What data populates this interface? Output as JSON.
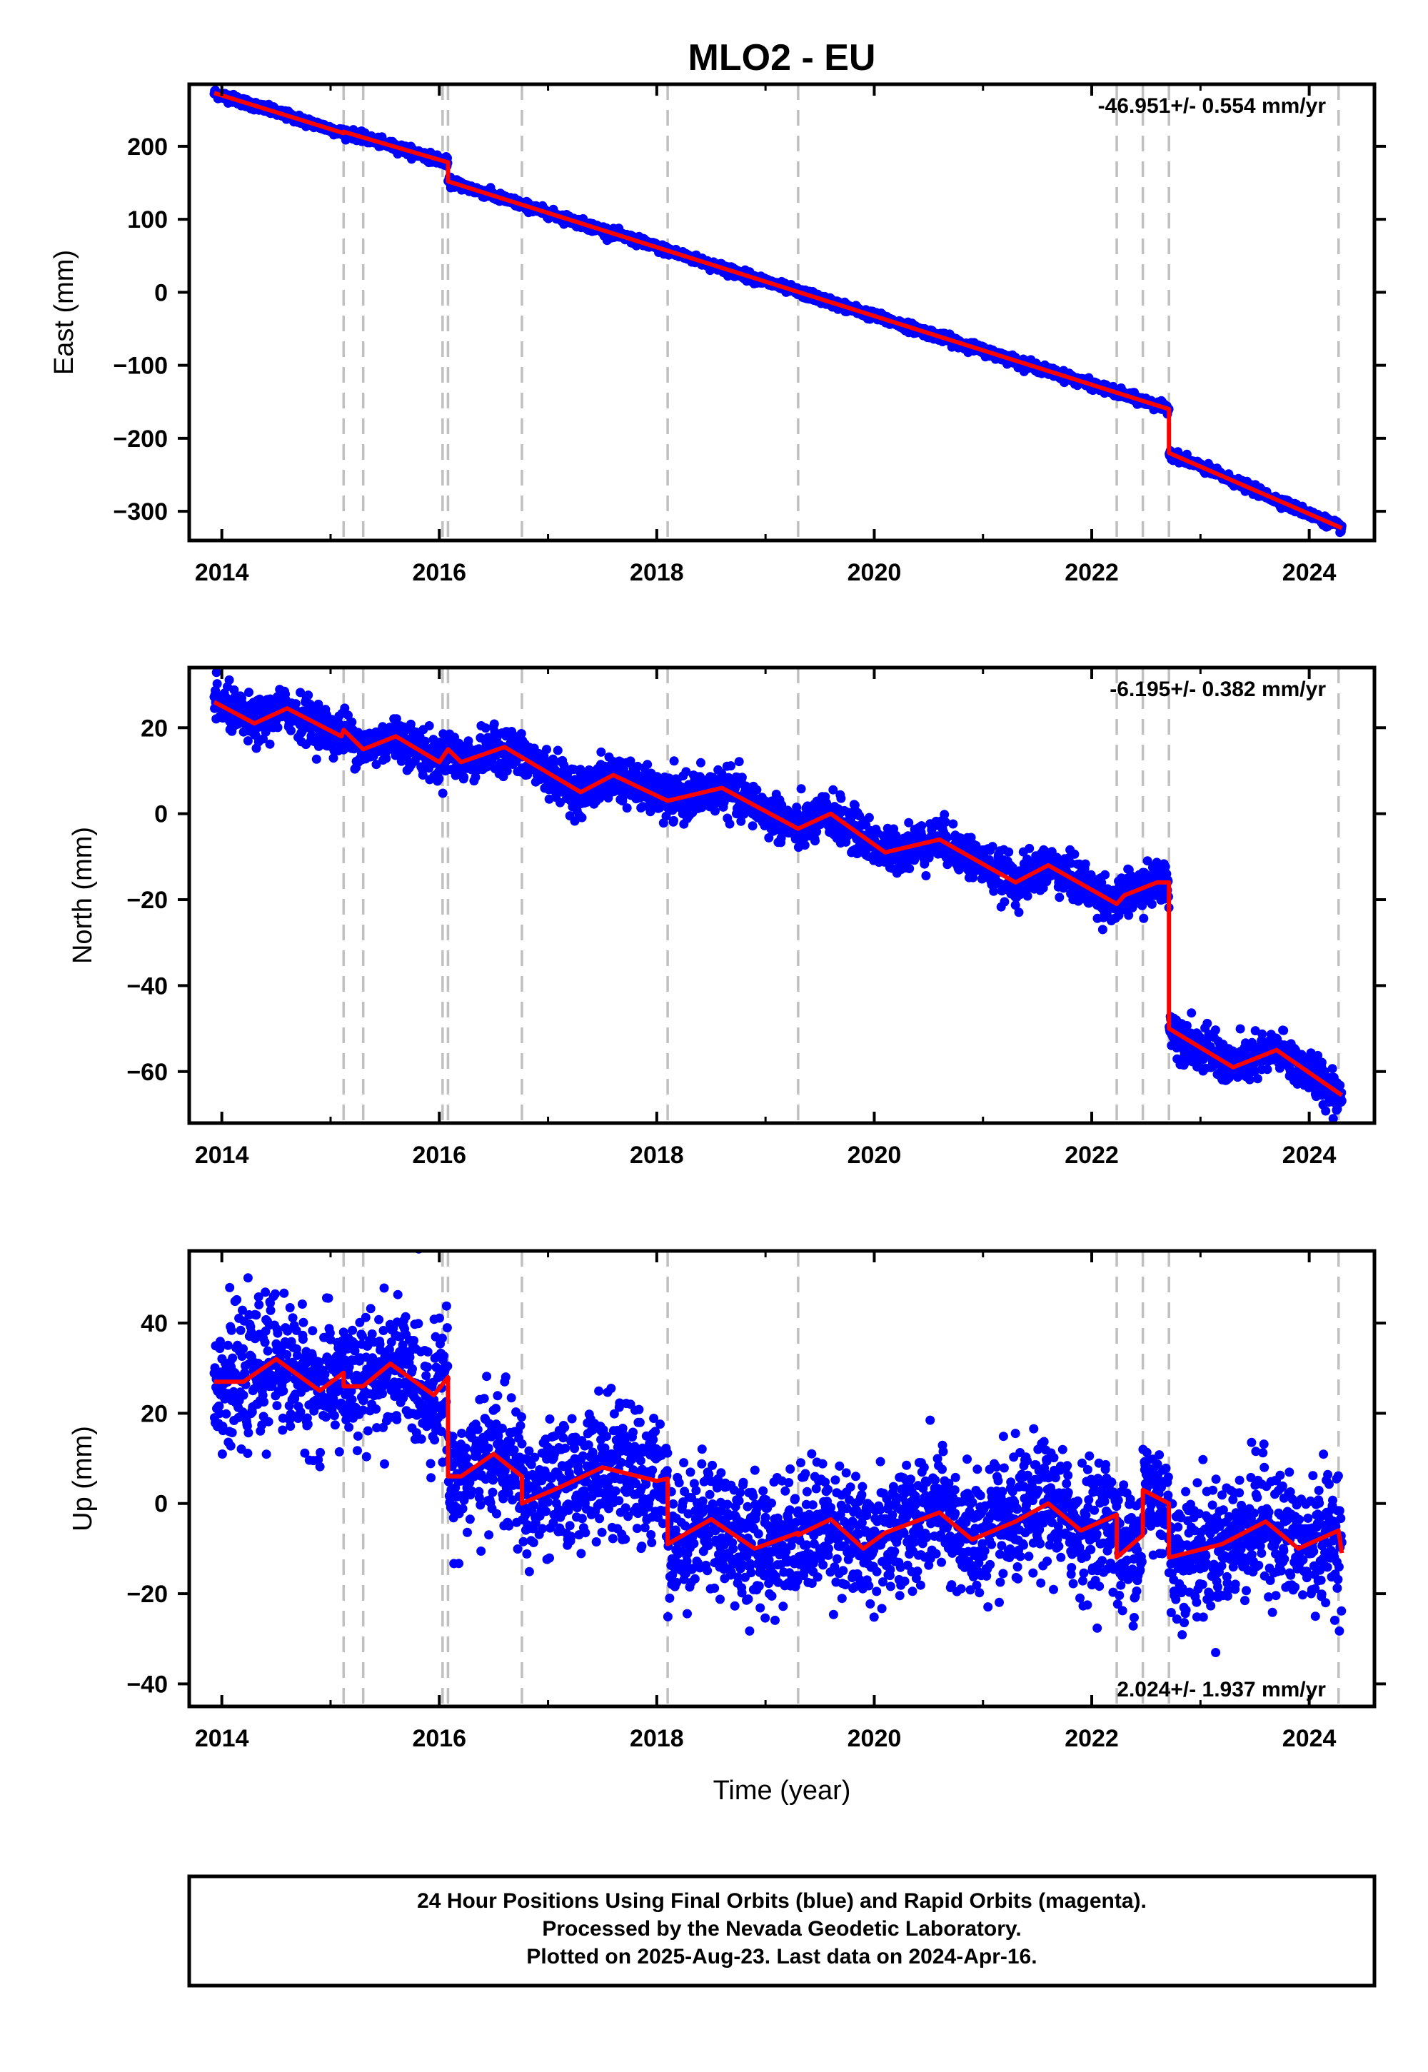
{
  "title": "MLO2 - EU",
  "xlabel": "Time (year)",
  "colors": {
    "points": "#0000ff",
    "model": "#ff0000",
    "breaks": "#c0c0c0",
    "frame": "#000000"
  },
  "footer": {
    "line1": "24 Hour Positions Using Final Orbits (blue) and Rapid Orbits (magenta).",
    "line2": "Processed by the Nevada Geodetic Laboratory.",
    "line3": "Plotted on 2025-Aug-23. Last data on 2024-Apr-16."
  },
  "chart_data": [
    {
      "type": "scatter",
      "name": "east",
      "ylabel": "East (mm)",
      "rate_label": "-46.951+/- 0.554 mm/yr",
      "rate_position": "top-right",
      "xlim": [
        2013.7,
        2024.6
      ],
      "ylim": [
        -340,
        285
      ],
      "xticks": [
        2014,
        2016,
        2018,
        2020,
        2022,
        2024
      ],
      "yticks": [
        -300,
        -200,
        -100,
        0,
        100,
        200
      ],
      "breaks": [
        2015.12,
        2015.3,
        2016.03,
        2016.08,
        2016.76,
        2018.1,
        2019.3,
        2022.23,
        2022.47,
        2022.71,
        2024.27
      ],
      "model_line": [
        [
          2013.93,
          273
        ],
        [
          2015.12,
          218
        ],
        [
          2015.12,
          220
        ],
        [
          2016.08,
          178
        ],
        [
          2016.08,
          152
        ],
        [
          2018.1,
          57
        ],
        [
          2022.71,
          -160
        ],
        [
          2022.71,
          -220
        ],
        [
          2024.3,
          -323
        ]
      ],
      "points": {
        "x_range": [
          2013.93,
          2024.3
        ],
        "scatter_mm": 3,
        "count": 3000
      }
    },
    {
      "type": "scatter",
      "name": "north",
      "ylabel": "North (mm)",
      "rate_label": "-6.195+/- 0.382 mm/yr",
      "rate_position": "top-right",
      "xlim": [
        2013.7,
        2024.6
      ],
      "ylim": [
        -72,
        34
      ],
      "xticks": [
        2014,
        2016,
        2018,
        2020,
        2022,
        2024
      ],
      "yticks": [
        -60,
        -40,
        -20,
        0,
        20
      ],
      "breaks": [
        2015.12,
        2015.3,
        2016.03,
        2016.08,
        2016.76,
        2018.1,
        2019.3,
        2022.23,
        2022.47,
        2022.71,
        2024.27
      ],
      "model_line": [
        [
          2013.93,
          26
        ],
        [
          2014.3,
          21
        ],
        [
          2014.6,
          24.5
        ],
        [
          2015.1,
          18
        ],
        [
          2015.12,
          19.5
        ],
        [
          2015.3,
          15
        ],
        [
          2015.6,
          18
        ],
        [
          2016.0,
          12
        ],
        [
          2016.08,
          15
        ],
        [
          2016.2,
          12
        ],
        [
          2016.6,
          15.5
        ],
        [
          2017.3,
          5
        ],
        [
          2017.6,
          9
        ],
        [
          2018.1,
          3
        ],
        [
          2018.6,
          6
        ],
        [
          2019.3,
          -3.5
        ],
        [
          2019.6,
          0
        ],
        [
          2020.1,
          -9
        ],
        [
          2020.6,
          -6
        ],
        [
          2021.3,
          -16
        ],
        [
          2021.6,
          -12
        ],
        [
          2022.23,
          -21
        ],
        [
          2022.3,
          -19
        ],
        [
          2022.6,
          -16
        ],
        [
          2022.71,
          -16
        ],
        [
          2022.71,
          -50
        ],
        [
          2023.3,
          -59
        ],
        [
          2023.7,
          -55
        ],
        [
          2024.3,
          -65.5
        ]
      ],
      "points": {
        "x_range": [
          2013.93,
          2024.3
        ],
        "scatter_mm": 2.5,
        "count": 3000
      }
    },
    {
      "type": "scatter",
      "name": "up",
      "ylabel": "Up (mm)",
      "rate_label": "2.024+/- 1.937 mm/yr",
      "rate_position": "bottom-right",
      "xlim": [
        2013.7,
        2024.6
      ],
      "ylim": [
        -45,
        56
      ],
      "xticks": [
        2014,
        2016,
        2018,
        2020,
        2022,
        2024
      ],
      "yticks": [
        -40,
        -20,
        0,
        20,
        40
      ],
      "breaks": [
        2015.12,
        2015.3,
        2016.03,
        2016.08,
        2016.76,
        2018.1,
        2019.3,
        2022.23,
        2022.47,
        2022.71,
        2024.27
      ],
      "model_line": [
        [
          2013.93,
          27
        ],
        [
          2014.2,
          27
        ],
        [
          2014.5,
          32
        ],
        [
          2014.9,
          25
        ],
        [
          2015.12,
          29
        ],
        [
          2015.12,
          26
        ],
        [
          2015.3,
          26
        ],
        [
          2015.55,
          31
        ],
        [
          2015.95,
          24
        ],
        [
          2016.08,
          28
        ],
        [
          2016.08,
          6
        ],
        [
          2016.2,
          6
        ],
        [
          2016.5,
          11
        ],
        [
          2016.76,
          6
        ],
        [
          2016.76,
          0
        ],
        [
          2017.1,
          3.5
        ],
        [
          2017.5,
          8
        ],
        [
          2018.0,
          5
        ],
        [
          2018.1,
          5.5
        ],
        [
          2018.1,
          -9
        ],
        [
          2018.5,
          -3.5
        ],
        [
          2018.9,
          -10
        ],
        [
          2019.3,
          -6.5
        ],
        [
          2019.3,
          -7
        ],
        [
          2019.6,
          -3.5
        ],
        [
          2019.9,
          -10
        ],
        [
          2020.1,
          -6.5
        ],
        [
          2020.6,
          -2
        ],
        [
          2020.9,
          -8
        ],
        [
          2021.3,
          -4
        ],
        [
          2021.6,
          0
        ],
        [
          2021.9,
          -6
        ],
        [
          2022.23,
          -2.5
        ],
        [
          2022.23,
          -12
        ],
        [
          2022.47,
          -7
        ],
        [
          2022.47,
          3
        ],
        [
          2022.71,
          0
        ],
        [
          2022.71,
          -12
        ],
        [
          2023.2,
          -9
        ],
        [
          2023.6,
          -4
        ],
        [
          2023.9,
          -10
        ],
        [
          2024.27,
          -6
        ],
        [
          2024.3,
          -11
        ]
      ],
      "points": {
        "x_range": [
          2013.93,
          2024.3
        ],
        "scatter_mm": 7,
        "count": 3200
      }
    }
  ]
}
